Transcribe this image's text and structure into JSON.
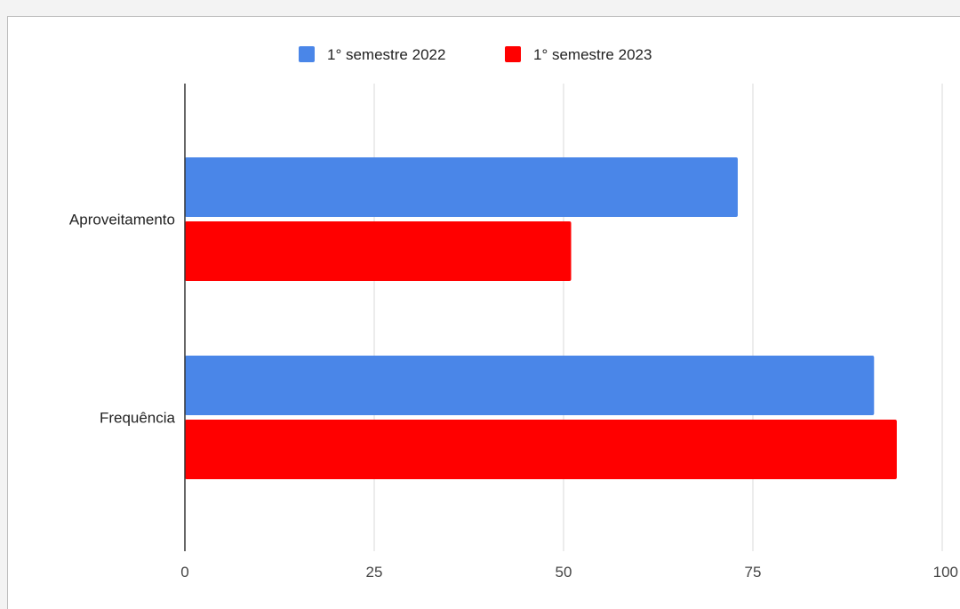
{
  "chart_data": {
    "type": "bar",
    "orientation": "horizontal",
    "categories": [
      "Aproveitamento",
      "Frequência"
    ],
    "series": [
      {
        "name": "1° semestre 2022",
        "color": "#4a86e8",
        "values": [
          73,
          91
        ]
      },
      {
        "name": "1° semestre 2023",
        "color": "#ff0000",
        "values": [
          51,
          94
        ]
      }
    ],
    "x_ticks": [
      "0",
      "25",
      "50",
      "75",
      "100"
    ],
    "xlim": [
      0,
      100
    ],
    "grid": true,
    "legend_position": "top-center"
  }
}
